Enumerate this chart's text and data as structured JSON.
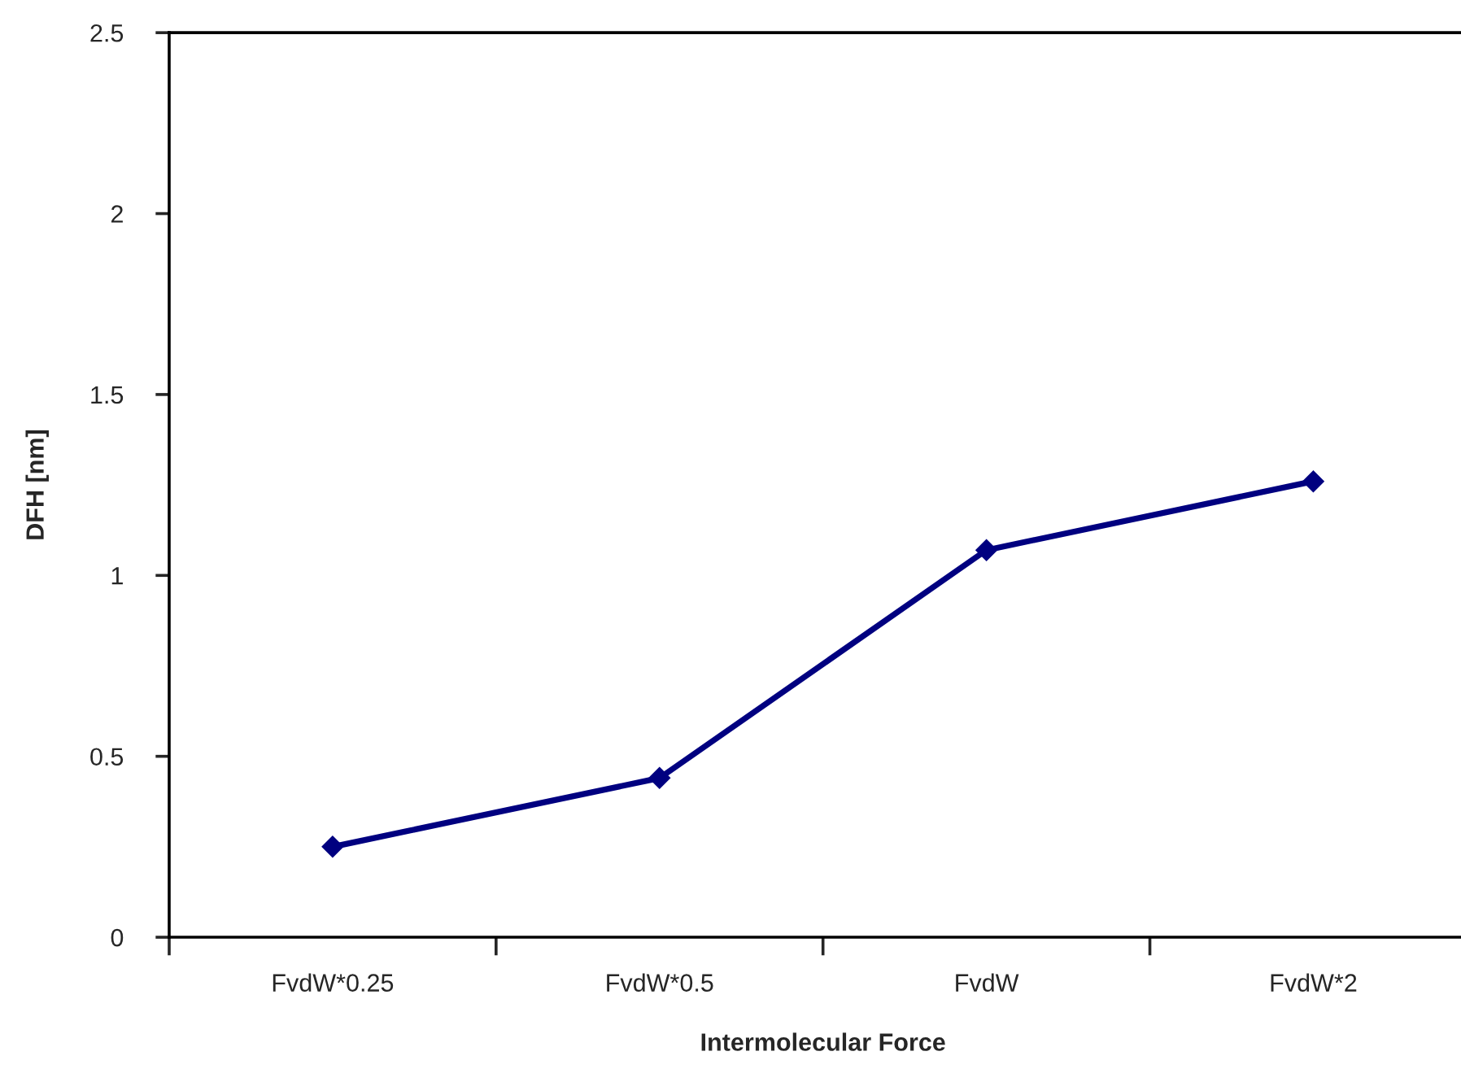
{
  "chart_data": {
    "type": "line",
    "xlabel": "Intermolecular Force",
    "ylabel": "DFH [nm]",
    "categories": [
      "FvdW*0.25",
      "FvdW*0.5",
      "FvdW",
      "FvdW*2"
    ],
    "series": [
      {
        "color": "#000080",
        "values": [
          0.25,
          0.44,
          1.07,
          1.26
        ]
      }
    ],
    "ylim": [
      0,
      2.5
    ],
    "yticks": [
      0,
      0.5,
      1,
      1.5,
      2,
      2.5
    ],
    "marker": "diamond",
    "line_style": "solid"
  }
}
